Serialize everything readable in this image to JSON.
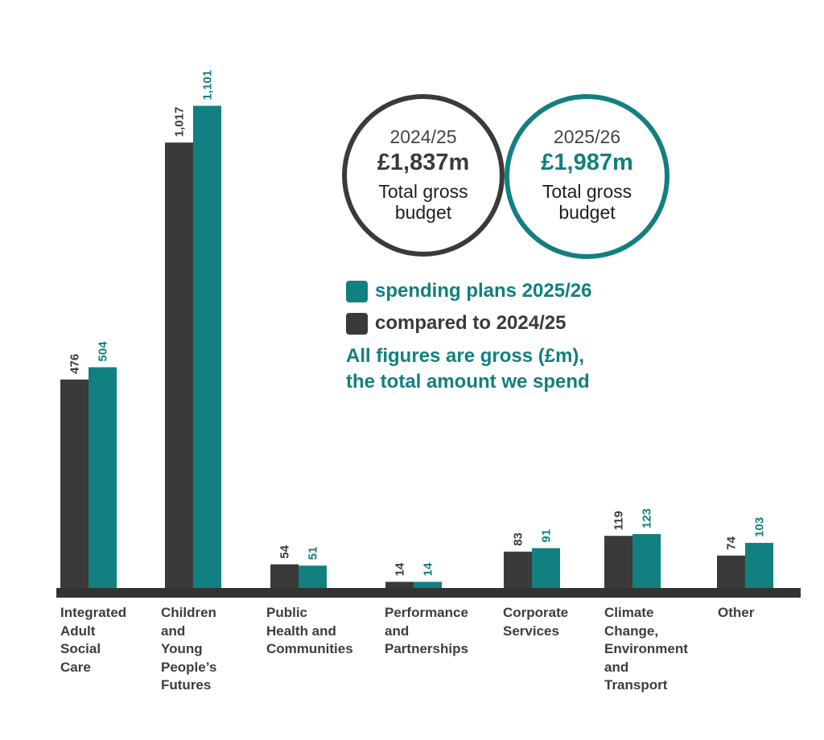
{
  "chart_data": {
    "type": "bar",
    "categories": [
      "Integrated\nAdult\nSocial\nCare",
      "Children\nand\nYoung\nPeople’s\nFutures",
      "Public\nHealth and\nCommunities",
      "Performance\nand\nPartnerships",
      "Corporate\nServices",
      "Climate\nChange,\nEnvironment\nand\nTransport",
      "Other"
    ],
    "series": [
      {
        "name": "compared to 2024/25",
        "color": "#3a3a3a",
        "values": [
          476,
          1017,
          54,
          14,
          83,
          119,
          74
        ],
        "labels": [
          "476",
          "1,017",
          "54",
          "14",
          "83",
          "119",
          "74"
        ]
      },
      {
        "name": "spending plans 2025/26",
        "color": "#127f80",
        "values": [
          504,
          1101,
          51,
          14,
          91,
          123,
          103
        ],
        "labels": [
          "504",
          "1,101",
          "51",
          "14",
          "91",
          "123",
          "103"
        ]
      }
    ],
    "ylabel": "£m",
    "ylim": [
      0,
      1150
    ],
    "value_label_orientation": "vertical"
  },
  "summary": {
    "prev": {
      "year": "2024/25",
      "amount": "£1,837m",
      "desc": "Total gross budget"
    },
    "curr": {
      "year": "2025/26",
      "amount": "£1,987m",
      "desc": "Total gross budget"
    }
  },
  "legend": {
    "current_label": "spending plans 2025/26",
    "previous_label": "compared to 2024/25",
    "note_line1": "All figures are gross (£m),",
    "note_line2": "the total amount we spend"
  },
  "colors": {
    "previous": "#3a3a3a",
    "current": "#127f80",
    "axis": "#333333"
  }
}
